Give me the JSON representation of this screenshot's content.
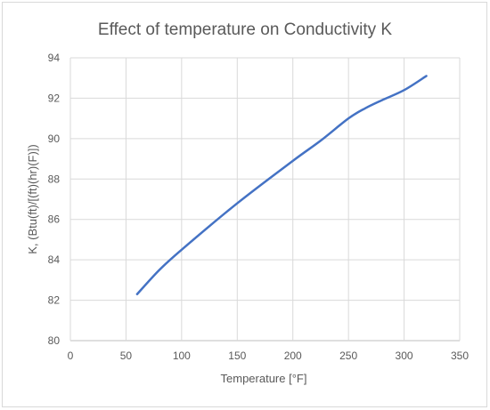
{
  "chart_data": {
    "type": "line",
    "title": "Effect of temperature on Conductivity K",
    "xlabel": "Temperature [°F]",
    "ylabel": "K, (Btu(ft)/[(ft)(hr)(F)])",
    "xlim": [
      0,
      350
    ],
    "ylim": [
      80,
      94
    ],
    "x_ticks": [
      0,
      50,
      100,
      150,
      200,
      250,
      300,
      350
    ],
    "y_ticks": [
      80,
      82,
      84,
      86,
      88,
      90,
      92,
      94
    ],
    "grid": true,
    "legend": "none",
    "series": [
      {
        "color": "#4472c4",
        "x": [
          60,
          80,
          100,
          150,
          200,
          225,
          250,
          265,
          280,
          300,
          320
        ],
        "y": [
          82.3,
          83.5,
          84.5,
          86.8,
          88.9,
          89.9,
          91.0,
          91.5,
          91.9,
          92.4,
          93.1
        ]
      }
    ]
  }
}
